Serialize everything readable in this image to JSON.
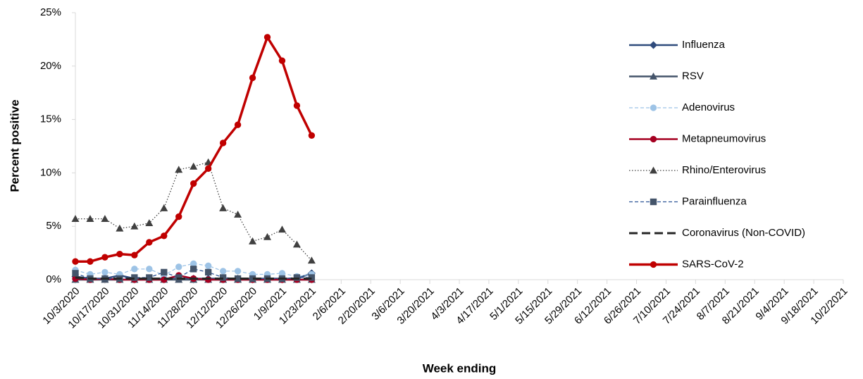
{
  "chart_data": {
    "type": "line",
    "y_label": "Percent positive",
    "x_label": "Week ending",
    "ylim": [
      0,
      25
    ],
    "yticks": [
      {
        "value": 0,
        "label": "0%"
      },
      {
        "value": 5,
        "label": "5%"
      },
      {
        "value": 10,
        "label": "10%"
      },
      {
        "value": 15,
        "label": "15%"
      },
      {
        "value": 20,
        "label": "20%"
      },
      {
        "value": 25,
        "label": "25%"
      }
    ],
    "legend": "right",
    "categories": [
      "10/3/2020",
      null,
      "10/17/2020",
      null,
      "10/31/2020",
      null,
      "11/14/2020",
      null,
      "11/28/2020",
      null,
      "12/12/2020",
      null,
      "12/26/2020",
      null,
      "1/9/2021",
      null,
      "1/23/2021",
      null,
      "2/6/2021",
      null,
      "2/20/2021",
      null,
      "3/6/2021",
      null,
      "3/20/2021",
      null,
      "4/3/2021",
      null,
      "4/17/2021",
      null,
      "5/1/2021",
      null,
      "5/15/2021",
      null,
      "5/29/2021",
      null,
      "6/12/2021",
      null,
      "6/26/2021",
      null,
      "7/10/2021",
      null,
      "7/24/2021",
      null,
      "8/7/2021",
      null,
      "8/21/2021",
      null,
      "9/4/2021",
      null,
      "9/18/2021",
      null,
      "10/2/2021"
    ],
    "series": [
      {
        "name": "Influenza",
        "color": "#2f4b7c",
        "dash": "solid",
        "marker": "diamond",
        "values": [
          0.3,
          0.1,
          0.1,
          0.4,
          0.1,
          0.1,
          0.1,
          0.1,
          0.1,
          0.1,
          0.1,
          0.1,
          0.1,
          0.1,
          0.1,
          0.1,
          0.6,
          null,
          null,
          null,
          null,
          null,
          null,
          null,
          null,
          null,
          null,
          null,
          null,
          null,
          null,
          null,
          null,
          null,
          null,
          null,
          null,
          null,
          null,
          null,
          null,
          null,
          null,
          null,
          null,
          null,
          null,
          null,
          null,
          null,
          null,
          null,
          null
        ]
      },
      {
        "name": "RSV",
        "color": "#44546a",
        "dash": "solid",
        "marker": "triangle",
        "values": [
          0,
          0,
          0,
          0,
          0,
          0,
          0,
          0,
          0,
          0,
          0,
          0,
          0,
          0,
          0,
          0,
          0,
          null,
          null,
          null,
          null,
          null,
          null,
          null,
          null,
          null,
          null,
          null,
          null,
          null,
          null,
          null,
          null,
          null,
          null,
          null,
          null,
          null,
          null,
          null,
          null,
          null,
          null,
          null,
          null,
          null,
          null,
          null,
          null,
          null,
          null,
          null,
          null
        ]
      },
      {
        "name": "Adenovirus",
        "color": "#9dc3e6",
        "dash": "dashed",
        "marker": "circle",
        "values": [
          0.9,
          0.5,
          0.7,
          0.5,
          1.0,
          1.0,
          0.4,
          1.2,
          1.5,
          1.3,
          0.8,
          0.8,
          0.5,
          0.5,
          0.6,
          0.3,
          0.5,
          null,
          null,
          null,
          null,
          null,
          null,
          null,
          null,
          null,
          null,
          null,
          null,
          null,
          null,
          null,
          null,
          null,
          null,
          null,
          null,
          null,
          null,
          null,
          null,
          null,
          null,
          null,
          null,
          null,
          null,
          null,
          null,
          null,
          null,
          null,
          null
        ]
      },
      {
        "name": "Metapneumovirus",
        "color": "#a50021",
        "dash": "solid",
        "marker": "circle",
        "values": [
          0.1,
          0,
          0.1,
          0,
          0,
          0,
          0,
          0.4,
          0.1,
          0,
          0,
          0,
          0,
          0,
          0,
          0,
          0,
          null,
          null,
          null,
          null,
          null,
          null,
          null,
          null,
          null,
          null,
          null,
          null,
          null,
          null,
          null,
          null,
          null,
          null,
          null,
          null,
          null,
          null,
          null,
          null,
          null,
          null,
          null,
          null,
          null,
          null,
          null,
          null,
          null,
          null,
          null,
          null
        ]
      },
      {
        "name": "Rhino/Enterovirus",
        "color": "#404040",
        "dash": "dotted",
        "marker": "triangle",
        "values": [
          5.7,
          5.7,
          5.7,
          4.8,
          5.0,
          5.3,
          6.7,
          10.3,
          10.6,
          11.0,
          6.7,
          6.1,
          3.6,
          4.0,
          4.7,
          3.3,
          1.8,
          null,
          null,
          null,
          null,
          null,
          null,
          null,
          null,
          null,
          null,
          null,
          null,
          null,
          null,
          null,
          null,
          null,
          null,
          null,
          null,
          null,
          null,
          null,
          null,
          null,
          null,
          null,
          null,
          null,
          null,
          null,
          null,
          null,
          null,
          null,
          null
        ]
      },
      {
        "name": "Parainfluenza",
        "color": "#2f5597",
        "dash": "dashed",
        "marker": "square",
        "values": [
          0.6,
          0.1,
          0.1,
          0.1,
          0.2,
          0.2,
          0.7,
          0.2,
          1.0,
          0.7,
          0.2,
          0.1,
          0.1,
          0.1,
          0.1,
          0.2,
          0.2,
          null,
          null,
          null,
          null,
          null,
          null,
          null,
          null,
          null,
          null,
          null,
          null,
          null,
          null,
          null,
          null,
          null,
          null,
          null,
          null,
          null,
          null,
          null,
          null,
          null,
          null,
          null,
          null,
          null,
          null,
          null,
          null,
          null,
          null,
          null,
          null
        ]
      },
      {
        "name": "Coronavirus (Non-COVID)",
        "color": "#262626",
        "dash": "longdash",
        "marker": "none",
        "values": [
          0.2,
          0.1,
          0.1,
          0.1,
          0.1,
          0.1,
          0.1,
          0.1,
          0.1,
          0.1,
          0.1,
          0.1,
          0.1,
          0.1,
          0.1,
          0.1,
          0.1,
          null,
          null,
          null,
          null,
          null,
          null,
          null,
          null,
          null,
          null,
          null,
          null,
          null,
          null,
          null,
          null,
          null,
          null,
          null,
          null,
          null,
          null,
          null,
          null,
          null,
          null,
          null,
          null,
          null,
          null,
          null,
          null,
          null,
          null,
          null,
          null
        ]
      },
      {
        "name": "SARS-CoV-2",
        "color": "#c00000",
        "dash": "thick",
        "marker": "circle",
        "values": [
          1.7,
          1.7,
          2.1,
          2.4,
          2.3,
          3.5,
          4.1,
          5.9,
          9.0,
          10.4,
          12.8,
          14.5,
          18.9,
          22.7,
          20.5,
          16.3,
          13.5,
          null,
          null,
          null,
          null,
          null,
          null,
          null,
          null,
          null,
          null,
          null,
          null,
          null,
          null,
          null,
          null,
          null,
          null,
          null,
          null,
          null,
          null,
          null,
          null,
          null,
          null,
          null,
          null,
          null,
          null,
          null,
          null,
          null,
          null,
          null,
          null
        ]
      }
    ]
  }
}
